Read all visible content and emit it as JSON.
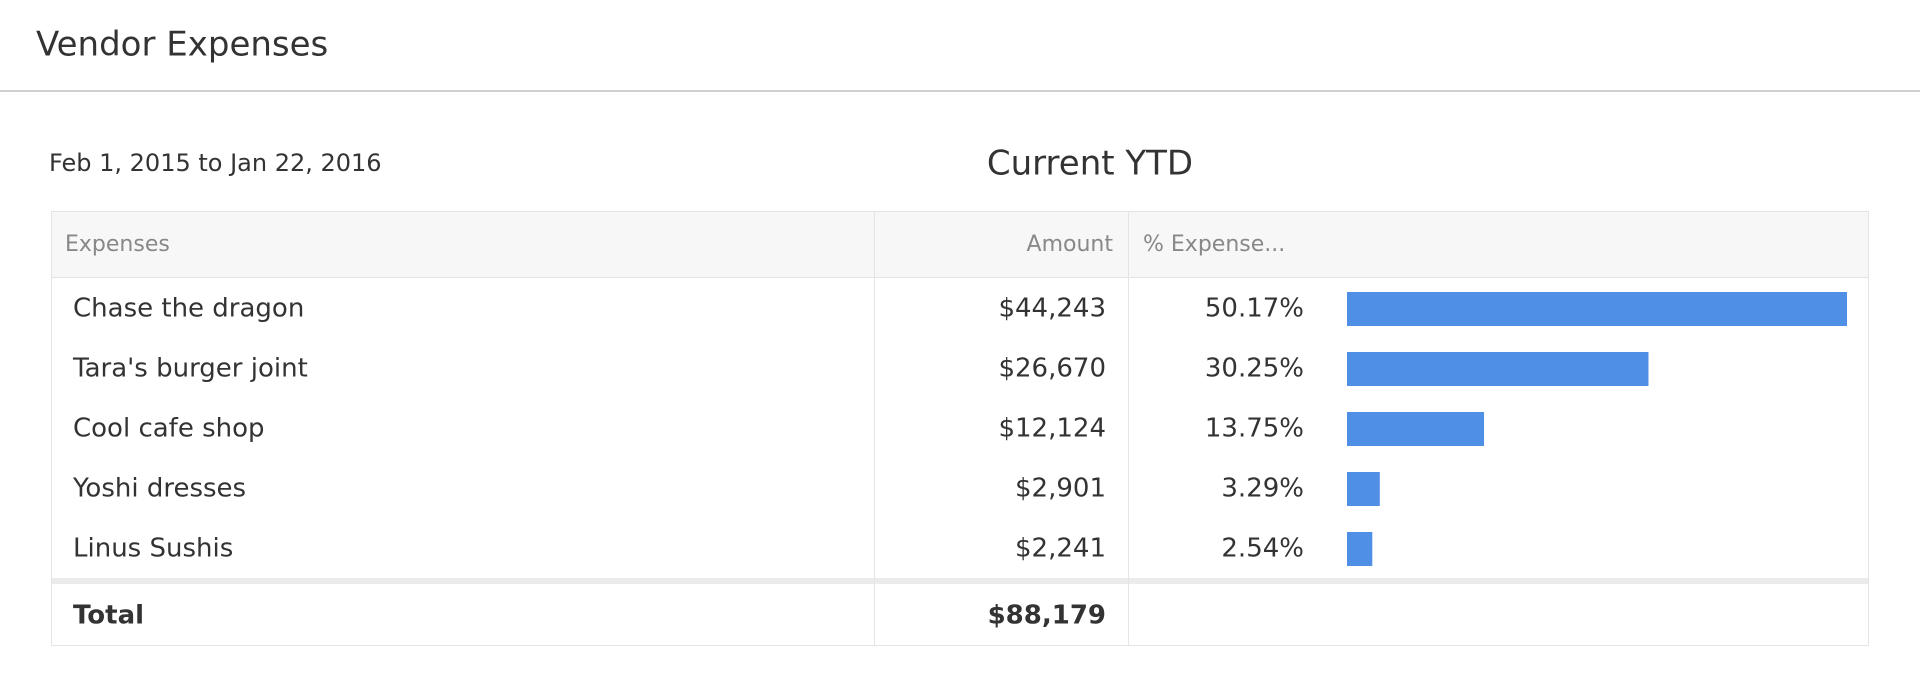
{
  "header": {
    "title": "Vendor Expenses"
  },
  "date_range": "Feb 1, 2015 to Jan 22, 2016",
  "table": {
    "title": "Current YTD",
    "columns": [
      "Expenses",
      "Amount",
      "% Expense..."
    ],
    "rows": [
      {
        "name": "Chase the dragon",
        "amount": "$44,243",
        "percent": {
          "value": 50.17,
          "label": "50.17%"
        }
      },
      {
        "name": "Tara's burger joint",
        "amount": "$26,670",
        "percent": {
          "value": 30.25,
          "label": "30.25%"
        }
      },
      {
        "name": "Cool cafe shop",
        "amount": "$12,124",
        "percent": {
          "value": 13.75,
          "label": "13.75%"
        }
      },
      {
        "name": "Yoshi dresses",
        "amount": "$2,901",
        "percent": {
          "value": 3.29,
          "label": "3.29%"
        }
      },
      {
        "name": "Linus Sushis",
        "amount": "$2,241",
        "percent": {
          "value": 2.54,
          "label": "2.54%"
        }
      }
    ],
    "total": {
      "name": "Total",
      "amount": "$88,179"
    },
    "bar_color": "#4f8fe6"
  }
}
